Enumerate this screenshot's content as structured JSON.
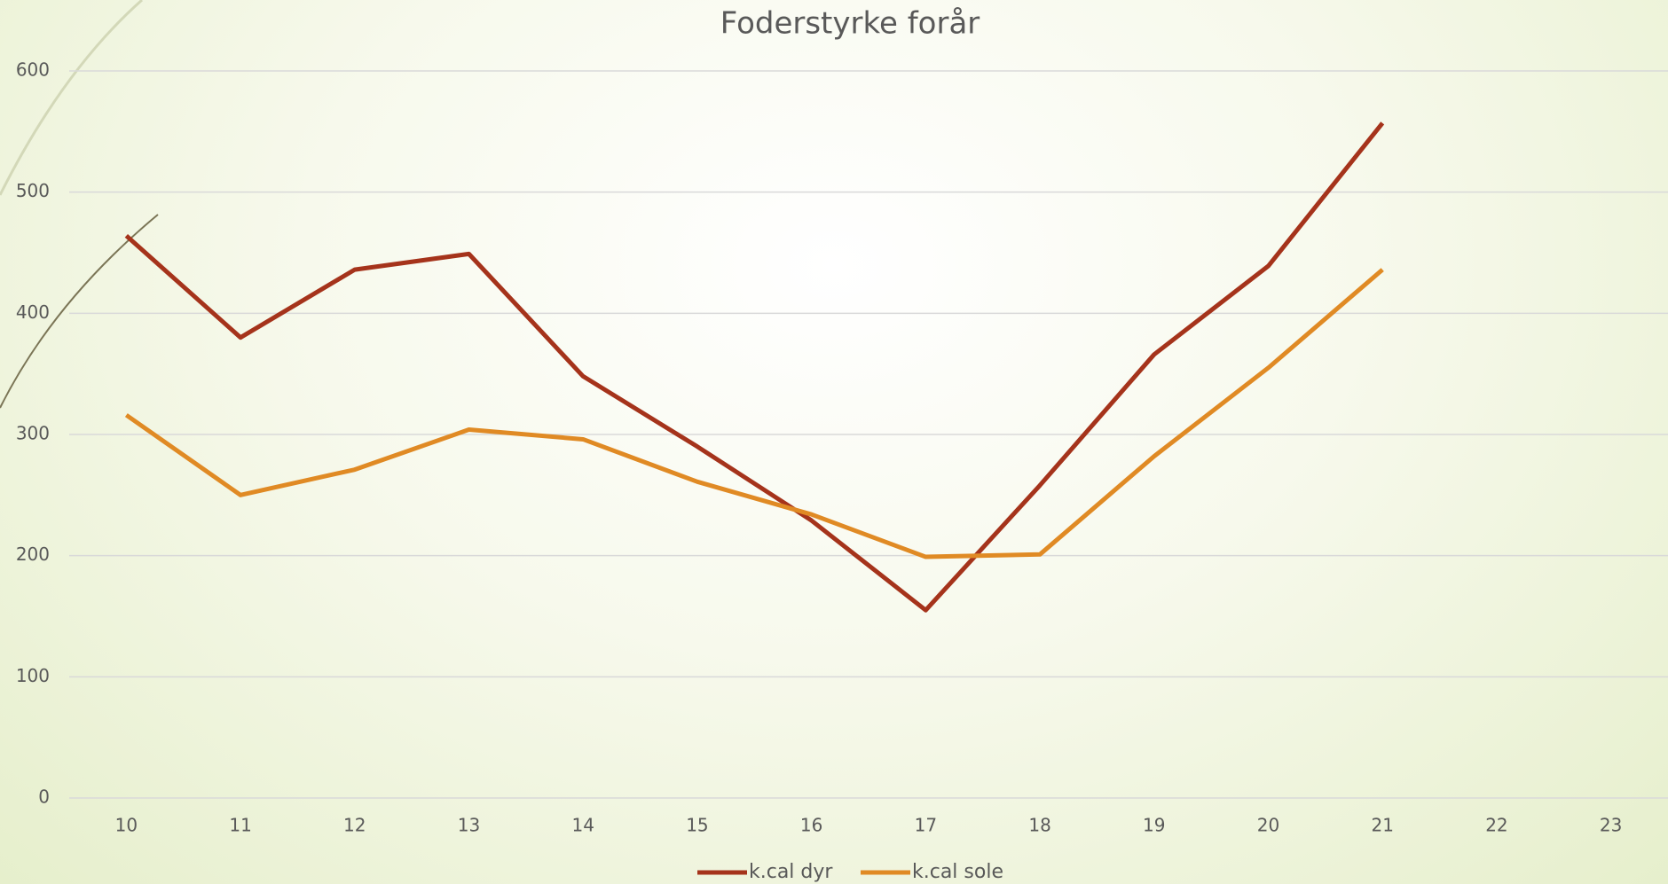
{
  "chart_data": {
    "type": "line",
    "title": "Foderstyrke forår",
    "categories": [
      "10",
      "11",
      "12",
      "13",
      "14",
      "15",
      "16",
      "17",
      "18",
      "19",
      "20",
      "21",
      "22",
      "23"
    ],
    "series": [
      {
        "name": "k.cal dyr",
        "color": "#a5331b",
        "values": [
          464,
          380,
          436,
          449,
          348,
          290,
          229,
          155,
          258,
          366,
          439,
          557,
          null,
          null
        ]
      },
      {
        "name": "k.cal sole",
        "color": "#e08a24",
        "values": [
          316,
          250,
          271,
          304,
          296,
          261,
          234,
          199,
          201,
          282,
          355,
          436,
          null,
          null
        ]
      }
    ],
    "ylim": [
      0,
      600
    ],
    "yticks": [
      0,
      100,
      200,
      300,
      400,
      500,
      600
    ],
    "grid": true,
    "legend": "bottom"
  }
}
